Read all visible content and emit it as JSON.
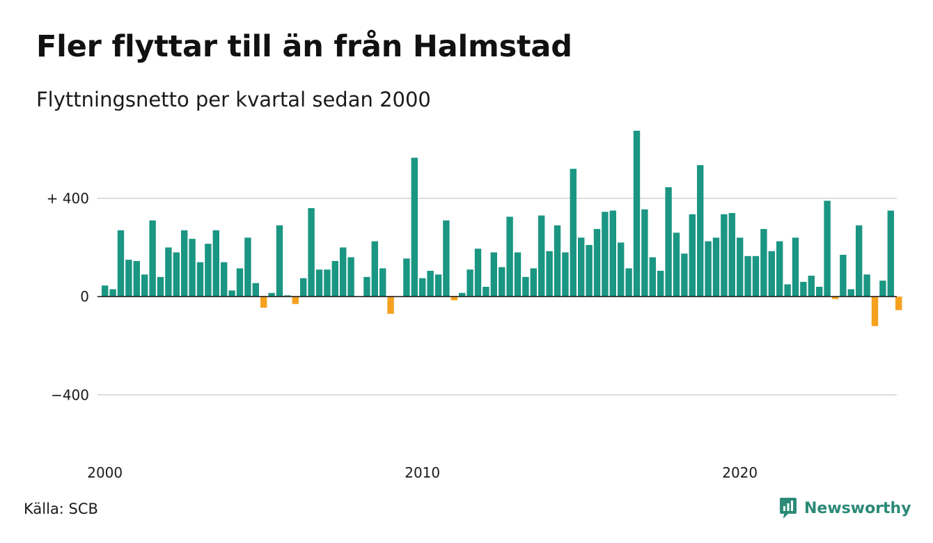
{
  "title": "Fler flyttar till än från Halmstad",
  "subtitle": "Flyttningsnetto per kvartal sedan 2000",
  "source": "Källa: SCB",
  "brand": {
    "name": "Newsworthy",
    "icon": "newsworthy-logo-icon"
  },
  "colors": {
    "positive": "#1a9683",
    "negative": "#f5a11e",
    "grid": "#dcdcdc",
    "zero": "#111111",
    "brand": "#2c8a78"
  },
  "chart_data": {
    "type": "bar",
    "title": "Fler flyttar till än från Halmstad",
    "subtitle": "Flyttningsnetto per kvartal sedan 2000",
    "xlabel": "",
    "ylabel": "",
    "ylim": [
      -640,
      680
    ],
    "grid": true,
    "y_ticks": [
      {
        "value": 400,
        "label": "+ 400"
      },
      {
        "value": 0,
        "label": "0"
      },
      {
        "value": -400,
        "label": "−400"
      }
    ],
    "x_ticks": [
      {
        "value": 0,
        "label": "2000"
      },
      {
        "value": 40,
        "label": "2010"
      },
      {
        "value": 80,
        "label": "2020"
      }
    ],
    "x_start": "2000 Q1",
    "frequency": "quarterly",
    "values": [
      45,
      30,
      270,
      150,
      145,
      90,
      310,
      80,
      200,
      180,
      270,
      235,
      140,
      215,
      270,
      140,
      25,
      115,
      240,
      55,
      -45,
      15,
      290,
      5,
      -30,
      75,
      360,
      110,
      110,
      145,
      200,
      160,
      0,
      80,
      225,
      115,
      -70,
      0,
      155,
      565,
      75,
      105,
      90,
      310,
      -15,
      15,
      110,
      195,
      40,
      180,
      120,
      325,
      180,
      80,
      115,
      330,
      185,
      290,
      180,
      520,
      240,
      210,
      275,
      345,
      350,
      220,
      115,
      675,
      355,
      160,
      105,
      445,
      260,
      175,
      335,
      535,
      225,
      240,
      335,
      340,
      240,
      165,
      165,
      275,
      185,
      225,
      50,
      240,
      60,
      85,
      40,
      390,
      -10,
      170,
      30,
      290,
      90,
      -120,
      65,
      350,
      -55
    ]
  }
}
